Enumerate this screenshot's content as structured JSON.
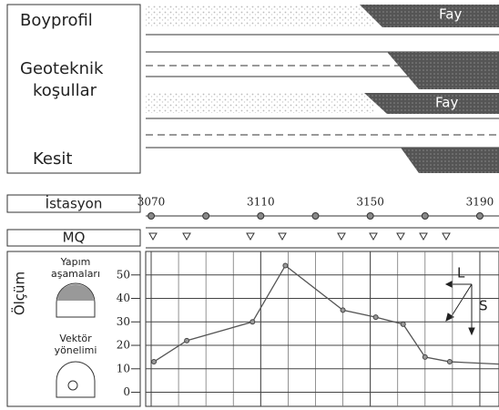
{
  "panel_labels": {
    "profile": "Boyprofil",
    "geotech": [
      "Geoteknik",
      "koşullar"
    ],
    "section": "Kesit"
  },
  "fault_labels": [
    "Fay",
    "Fay"
  ],
  "station_row": {
    "label": "İstasyon"
  },
  "mq_row": {
    "label": "MQ"
  },
  "measurement": {
    "label": "Ölçüm",
    "stages": [
      "Yapım",
      "aşamaları"
    ],
    "vector": [
      "Vektör",
      "yönelimi"
    ]
  },
  "chart_data": {
    "type": "line",
    "x": [
      3071,
      3083,
      3107,
      3119,
      3140,
      3152,
      3162,
      3170,
      3179,
      3197
    ],
    "values": [
      13,
      22,
      30,
      54,
      35,
      32,
      29,
      15,
      13,
      12
    ],
    "color": "#555555",
    "xlim": [
      3068,
      3197
    ],
    "xticks": [
      3070,
      3110,
      3150,
      3190
    ],
    "ylim": [
      -6,
      60
    ],
    "yticks": [
      0,
      10,
      20,
      30,
      40,
      50
    ],
    "grid": true,
    "annotations": [
      "L",
      "S"
    ]
  }
}
